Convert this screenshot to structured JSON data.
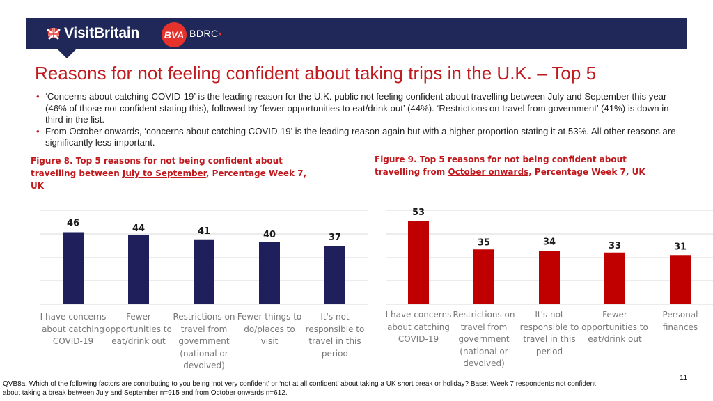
{
  "header": {
    "visitbritain_logo_text": "VisitBritain",
    "bva_logo_text": "BVA",
    "bdrc_logo_text": "BDRC"
  },
  "title": "Reasons for not feeling confident about taking trips in the U.K. – Top 5",
  "bullets": [
    "‘Concerns about catching COVID-19’ is the leading reason for the U.K. public not feeling confident about travelling between July and September this year (46% of those not confident stating this), followed by ‘fewer opportunities to eat/drink out’ (44%). ‘Restrictions on travel from government’ (41%) is down in third in the list.",
    "From October onwards, ‘concerns about catching COVID-19’ is the leading reason again but with a higher proportion stating it at 53%. All other reasons are significantly less important."
  ],
  "figure8_caption": {
    "prefix": "Figure 8. Top 5 reasons for not being confident about travelling between ",
    "underlined": "July to September",
    "suffix": ", Percentage Week 7, UK"
  },
  "figure9_caption": {
    "prefix": "Figure 9. Top 5 reasons for not being confident about travelling from ",
    "underlined": "October onwards",
    "suffix": ", Percentage Week 7, UK"
  },
  "chart_data": [
    {
      "type": "bar",
      "title": "Top 5 reasons for not being confident about travelling between July to September, Percentage Week 7, UK",
      "categories": [
        [
          "I have concerns",
          "about catching",
          "COVID-19"
        ],
        [
          "Fewer",
          "opportunities to",
          "eat/drink out"
        ],
        [
          "Restrictions on",
          "travel from",
          "government",
          "(national or",
          "devolved)"
        ],
        [
          "Fewer things to",
          "do/places to",
          "visit"
        ],
        [
          "It's not",
          "responsible to",
          "travel in this",
          "period"
        ]
      ],
      "values": [
        46,
        44,
        41,
        40,
        37
      ],
      "ylim": [
        0,
        60
      ],
      "color": "#1f1f5c",
      "grid": true
    },
    {
      "type": "bar",
      "title": "Top 5 reasons for not being confident about travelling from October onwards, Percentage Week 7, UK",
      "categories": [
        [
          "I have concerns",
          "about catching",
          "COVID-19"
        ],
        [
          "Restrictions on",
          "travel from",
          "government",
          "(national or",
          "devolved)"
        ],
        [
          "It's not",
          "responsible to",
          "travel in this",
          "period"
        ],
        [
          "Fewer",
          "opportunities to",
          "eat/drink out"
        ],
        [
          "Personal",
          "finances"
        ]
      ],
      "values": [
        53,
        35,
        34,
        33,
        31
      ],
      "ylim": [
        0,
        60
      ],
      "color": "#c00000",
      "grid": true
    }
  ],
  "footnote": "QVB8a.  Which of the following factors are contributing to you being ‘not very confident’ or ‘not at all confident’ about taking a UK short break or holiday? Base: Week 7 respondents not confident about taking a break between July and September n=915 and from October onwards n=612.",
  "page_number": "11"
}
